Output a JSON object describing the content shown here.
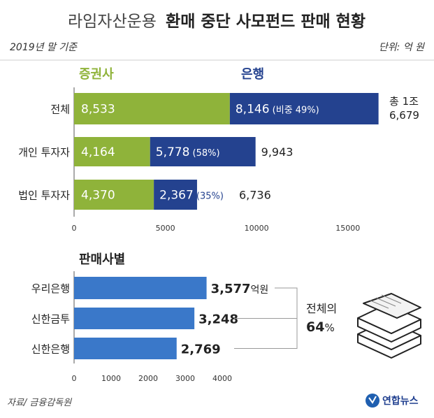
{
  "header": {
    "title_light": "라임자산운용",
    "title_bold": "환매 중단 사모펀드 판매 현황",
    "basis": "2019년 말 기준",
    "unit": "단위: 억 원"
  },
  "legend": {
    "securities": "증권사",
    "bank": "은행"
  },
  "colors": {
    "securities": "#8fb33a",
    "bank": "#24428f",
    "sales_bar": "#3a78c9",
    "text_blue": "#24428f"
  },
  "chart_data": [
    {
      "type": "bar",
      "orientation": "horizontal",
      "stacked": true,
      "categories": [
        "전체",
        "개인 투자자",
        "법인 투자자"
      ],
      "series": [
        {
          "name": "증권사",
          "values": [
            8533,
            4164,
            4370
          ]
        },
        {
          "name": "은행",
          "values": [
            8146,
            5778,
            2367
          ]
        }
      ],
      "value_labels": {
        "securities": [
          "8,533",
          "4,164",
          "4,370"
        ],
        "bank": [
          "8,146",
          "5,778",
          "2,367"
        ],
        "bank_share": [
          "(비중 49%)",
          "(58%)",
          "(35%)"
        ]
      },
      "totals": [
        {
          "lines": [
            "총 1조",
            "6,679"
          ]
        },
        {
          "lines": [
            "9,943"
          ]
        },
        {
          "lines": [
            "6,736"
          ]
        }
      ],
      "xlim": [
        0,
        17000
      ],
      "xticks": [
        0,
        5000,
        10000,
        15000
      ],
      "xtick_labels": [
        "0",
        "5000",
        "10000",
        "15000"
      ]
    },
    {
      "type": "bar",
      "orientation": "horizontal",
      "title": "판매사별",
      "categories": [
        "우리은행",
        "신한금투",
        "신한은행"
      ],
      "values": [
        3577,
        3248,
        2769
      ],
      "value_labels": [
        "3,577",
        "3,248",
        "2,769"
      ],
      "first_value_unit": "억원",
      "xlim": [
        0,
        4400
      ],
      "xticks": [
        0,
        1000,
        2000,
        3000,
        4000
      ],
      "xtick_labels": [
        "0",
        "1000",
        "2000",
        "3000",
        "4000"
      ],
      "annotation": {
        "line1": "전체의",
        "value": "64",
        "suffix": "%"
      }
    }
  ],
  "footer": {
    "source": "자료/ 금융감독원",
    "brand": "연합뉴스"
  }
}
